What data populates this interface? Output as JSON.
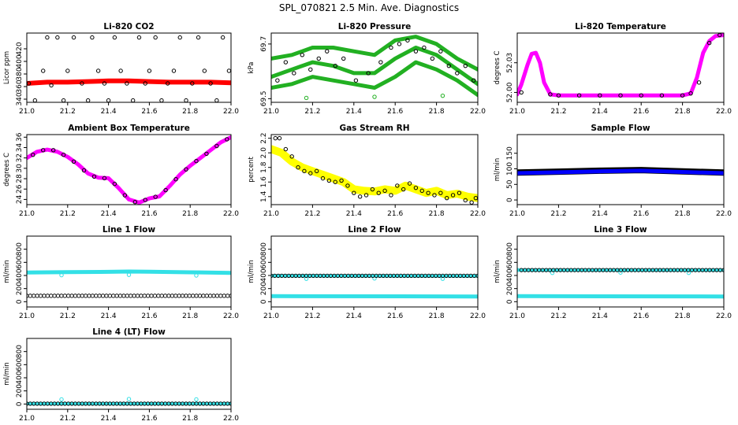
{
  "main_title": "SPL_070821  2.5 Min. Ave. Diagnostics",
  "chart_data": [
    {
      "id": "co2",
      "type": "scatter",
      "title": "Li-820 CO2",
      "ylabel": "Licor ppm",
      "xlim": [
        21.0,
        22.0
      ],
      "ylim": [
        335,
        445
      ],
      "xticks": [
        21.0,
        21.2,
        21.4,
        21.6,
        21.8,
        22.0
      ],
      "yticks": [
        340,
        360,
        380,
        400,
        420
      ],
      "series": [
        {
          "kind": "band",
          "color": "#ff0000",
          "x": [
            21.0,
            21.1,
            21.2,
            21.3,
            21.4,
            21.5,
            21.6,
            21.7,
            21.8,
            21.9,
            22.0
          ],
          "y": [
            365,
            367,
            367,
            368,
            369,
            369,
            368,
            367,
            367,
            367,
            366
          ],
          "w": 6
        },
        {
          "kind": "points",
          "color": "#000000",
          "x": [
            21.01,
            21.04,
            21.08,
            21.1,
            21.12,
            21.15,
            21.18,
            21.2,
            21.23,
            21.27,
            21.3,
            21.32,
            21.35,
            21.38,
            21.4,
            21.43,
            21.46,
            21.49,
            21.52,
            21.55,
            21.58,
            21.6,
            21.63,
            21.66,
            21.69,
            21.72,
            21.75,
            21.78,
            21.81,
            21.84,
            21.87,
            21.9,
            21.93,
            21.96,
            21.99
          ],
          "y": [
            365,
            338,
            385,
            438,
            362,
            438,
            338,
            385,
            438,
            365,
            338,
            438,
            385,
            365,
            338,
            438,
            385,
            365,
            338,
            438,
            365,
            385,
            438,
            338,
            365,
            385,
            438,
            338,
            365,
            438,
            385,
            365,
            338,
            438,
            385
          ]
        }
      ]
    },
    {
      "id": "pressure",
      "type": "scatter",
      "title": "Li-820 Pressure",
      "ylabel": "kPa",
      "xlim": [
        21.0,
        22.0
      ],
      "ylim": [
        69.54,
        69.73
      ],
      "xticks": [
        21.0,
        21.2,
        21.4,
        21.6,
        21.8,
        22.0
      ],
      "yticks": [
        69.55,
        69.7
      ],
      "series": [
        {
          "kind": "band",
          "color": "#22b022",
          "x": [
            21.0,
            21.1,
            21.2,
            21.3,
            21.4,
            21.5,
            21.6,
            21.7,
            21.8,
            21.9,
            22.0
          ],
          "y": [
            69.66,
            69.67,
            69.69,
            69.69,
            69.68,
            69.67,
            69.71,
            69.72,
            69.7,
            69.66,
            69.63
          ],
          "w": 5
        },
        {
          "kind": "band",
          "color": "#22b022",
          "x": [
            21.0,
            21.1,
            21.2,
            21.3,
            21.4,
            21.5,
            21.6,
            21.7,
            21.8,
            21.9,
            22.0
          ],
          "y": [
            69.61,
            69.63,
            69.65,
            69.64,
            69.62,
            69.62,
            69.66,
            69.69,
            69.67,
            69.63,
            69.59
          ],
          "w": 5
        },
        {
          "kind": "band",
          "color": "#22b022",
          "x": [
            21.0,
            21.1,
            21.2,
            21.3,
            21.4,
            21.5,
            21.6,
            21.7,
            21.8,
            21.9,
            22.0
          ],
          "y": [
            69.58,
            69.59,
            69.61,
            69.6,
            69.59,
            69.58,
            69.61,
            69.65,
            69.63,
            69.6,
            69.56
          ],
          "w": 5
        },
        {
          "kind": "points",
          "color": "#22b022",
          "x": [
            21.17,
            21.5,
            21.83
          ],
          "y": [
            69.552,
            69.555,
            69.558
          ]
        },
        {
          "kind": "points",
          "color": "#000000",
          "x": [
            21.03,
            21.07,
            21.11,
            21.15,
            21.19,
            21.23,
            21.27,
            21.31,
            21.35,
            21.41,
            21.47,
            21.53,
            21.58,
            21.62,
            21.66,
            21.7,
            21.74,
            21.78,
            21.82,
            21.86,
            21.9,
            21.94,
            21.98
          ],
          "y": [
            69.6,
            69.65,
            69.62,
            69.67,
            69.63,
            69.66,
            69.68,
            69.64,
            69.66,
            69.6,
            69.62,
            69.65,
            69.69,
            69.7,
            69.71,
            69.68,
            69.69,
            69.66,
            69.68,
            69.64,
            69.62,
            69.64,
            69.6
          ]
        }
      ]
    },
    {
      "id": "licortemp",
      "type": "scatter",
      "title": "Li-820 Temperature",
      "ylabel": "degrees C",
      "xlim": [
        21.0,
        22.0
      ],
      "ylim": [
        51.99,
        52.06
      ],
      "xticks": [
        21.0,
        21.2,
        21.4,
        21.6,
        21.8,
        22.0
      ],
      "yticks": [
        52.0,
        52.03
      ],
      "series": [
        {
          "kind": "band",
          "color": "#ff00ff",
          "x": [
            21.0,
            21.02,
            21.05,
            21.07,
            21.09,
            21.11,
            21.13,
            21.16,
            21.2,
            21.4,
            21.6,
            21.8,
            21.84,
            21.87,
            21.9,
            21.93,
            21.96,
            22.0
          ],
          "y": [
            51.998,
            52.008,
            52.028,
            52.039,
            52.04,
            52.03,
            52.01,
            51.998,
            51.997,
            51.997,
            51.997,
            51.997,
            51.999,
            52.015,
            52.04,
            52.052,
            52.057,
            52.058
          ],
          "w": 5
        },
        {
          "kind": "points",
          "color": "#000000",
          "x": [
            21.02,
            21.16,
            21.2,
            21.3,
            21.4,
            21.5,
            21.6,
            21.7,
            21.8,
            21.84,
            21.88,
            21.93,
            21.98
          ],
          "y": [
            52.0,
            51.998,
            51.997,
            51.997,
            51.997,
            51.997,
            51.997,
            51.997,
            51.997,
            51.999,
            52.01,
            52.05,
            52.058
          ]
        }
      ]
    },
    {
      "id": "boxtemp",
      "type": "scatter",
      "title": "Ambient Box Temperature",
      "ylabel": "degrees C",
      "xlim": [
        21.0,
        22.0
      ],
      "ylim": [
        23,
        36.5
      ],
      "xticks": [
        21.0,
        21.2,
        21.4,
        21.6,
        21.8,
        22.0
      ],
      "yticks": [
        24,
        26,
        28,
        30,
        32,
        34,
        36
      ],
      "series": [
        {
          "kind": "band",
          "color": "#ff00ff",
          "x": [
            21.0,
            21.05,
            21.1,
            21.15,
            21.2,
            21.25,
            21.3,
            21.35,
            21.4,
            21.45,
            21.5,
            21.55,
            21.6,
            21.65,
            21.7,
            21.75,
            21.8,
            21.85,
            21.9,
            21.95,
            22.0
          ],
          "y": [
            32,
            33.2,
            33.6,
            33.2,
            32.2,
            30.8,
            29,
            28.2,
            28.1,
            26.2,
            24,
            23.4,
            24.2,
            24.6,
            26.6,
            28.8,
            30.5,
            32,
            33.5,
            35,
            36
          ],
          "w": 5
        },
        {
          "kind": "points",
          "color": "#000000",
          "x": [
            21.03,
            21.08,
            21.13,
            21.18,
            21.23,
            21.28,
            21.33,
            21.38,
            21.43,
            21.48,
            21.53,
            21.58,
            21.63,
            21.68,
            21.73,
            21.78,
            21.83,
            21.88,
            21.93,
            21.98
          ],
          "y": [
            32.6,
            33.5,
            33.5,
            32.6,
            31.3,
            29.6,
            28.4,
            28.1,
            27,
            24.8,
            23.5,
            23.9,
            24.5,
            25.8,
            27.9,
            29.8,
            31.4,
            32.8,
            34.3,
            35.6
          ]
        }
      ]
    },
    {
      "id": "rh",
      "type": "scatter",
      "title": "Gas Stream RH",
      "ylabel": "percent",
      "xlim": [
        21.0,
        22.0
      ],
      "ylim": [
        1.29,
        2.25
      ],
      "xticks": [
        21.0,
        21.2,
        21.4,
        21.6,
        21.8,
        22.0
      ],
      "yticks": [
        1.4,
        1.6,
        1.8,
        2.0,
        2.2
      ],
      "series": [
        {
          "kind": "band",
          "color": "#ffff00",
          "x": [
            21.0,
            21.05,
            21.1,
            21.15,
            21.2,
            21.25,
            21.3,
            21.35,
            21.4,
            21.45,
            21.5,
            21.55,
            21.6,
            21.65,
            21.7,
            21.75,
            21.8,
            21.85,
            21.9,
            21.95,
            22.0
          ],
          "y": [
            2.05,
            2.0,
            1.88,
            1.8,
            1.75,
            1.7,
            1.65,
            1.6,
            1.5,
            1.48,
            1.47,
            1.5,
            1.48,
            1.55,
            1.5,
            1.45,
            1.48,
            1.42,
            1.44,
            1.4,
            1.38
          ],
          "w": 10
        },
        {
          "kind": "points",
          "color": "#000000",
          "x": [
            21.02,
            21.04,
            21.07,
            21.1,
            21.13,
            21.16,
            21.19,
            21.22,
            21.25,
            21.28,
            21.31,
            21.34,
            21.37,
            21.4,
            21.43,
            21.46,
            21.49,
            21.52,
            21.55,
            21.58,
            21.61,
            21.64,
            21.67,
            21.7,
            21.73,
            21.76,
            21.79,
            21.82,
            21.85,
            21.88,
            21.91,
            21.94,
            21.97,
            21.99
          ],
          "y": [
            2.2,
            2.2,
            2.05,
            1.95,
            1.8,
            1.75,
            1.72,
            1.75,
            1.65,
            1.62,
            1.6,
            1.62,
            1.55,
            1.45,
            1.4,
            1.42,
            1.5,
            1.45,
            1.48,
            1.42,
            1.55,
            1.5,
            1.58,
            1.52,
            1.48,
            1.45,
            1.42,
            1.45,
            1.38,
            1.42,
            1.45,
            1.35,
            1.32,
            1.38
          ]
        }
      ]
    },
    {
      "id": "sampleflow",
      "type": "scatter",
      "title": "Sample Flow",
      "ylabel": "ml/min",
      "xlim": [
        21.0,
        22.0
      ],
      "ylim": [
        -15,
        210
      ],
      "xticks": [
        21.0,
        21.2,
        21.4,
        21.6,
        21.8,
        22.0
      ],
      "yticks": [
        0,
        50,
        100,
        150
      ],
      "series": [
        {
          "kind": "band",
          "color": "#000000",
          "x": [
            21.0,
            21.2,
            21.4,
            21.6,
            21.8,
            22.0
          ],
          "y": [
            88,
            91,
            94,
            96,
            92,
            88
          ],
          "w": 8
        },
        {
          "kind": "band",
          "color": "#0000ff",
          "x": [
            21.0,
            21.2,
            21.4,
            21.6,
            21.8,
            22.0
          ],
          "y": [
            86,
            89,
            92,
            94,
            90,
            86
          ],
          "w": 5
        }
      ]
    },
    {
      "id": "line1",
      "type": "scatter",
      "title": "Line 1 Flow",
      "ylabel": "ml/min",
      "xlim": [
        21.0,
        22.0
      ],
      "ylim": [
        -80,
        1000
      ],
      "xticks": [
        21.0,
        21.2,
        21.4,
        21.6,
        21.8,
        22.0
      ],
      "yticks": [
        0,
        200,
        400,
        600,
        800
      ],
      "series": [
        {
          "kind": "band",
          "color": "#33e0e6",
          "x": [
            21.0,
            21.2,
            21.4,
            21.5,
            21.6,
            21.8,
            22.0
          ],
          "y": [
            445,
            450,
            455,
            460,
            458,
            448,
            440
          ],
          "w": 5
        },
        {
          "kind": "points",
          "color": "#33e0e6",
          "x": [
            21.17,
            21.5,
            21.83
          ],
          "y": [
            405,
            410,
            400
          ]
        },
        {
          "kind": "dense",
          "color": "#000000",
          "x0": 21.0,
          "x1": 22.0,
          "y": 90,
          "n": 60
        }
      ]
    },
    {
      "id": "line2",
      "type": "scatter",
      "title": "Line 2 Flow",
      "ylabel": "ml/min",
      "xlim": [
        21.0,
        22.0
      ],
      "ylim": [
        -80,
        1000
      ],
      "xticks": [
        21.0,
        21.2,
        21.4,
        21.6,
        21.8,
        22.0
      ],
      "yticks": [
        0,
        200,
        400,
        600,
        800
      ],
      "series": [
        {
          "kind": "band",
          "color": "#33e0e6",
          "x": [
            21.0,
            22.0
          ],
          "y": [
            85,
            80
          ],
          "w": 5
        },
        {
          "kind": "band",
          "color": "#33e0e6",
          "x": [
            21.0,
            22.0
          ],
          "y": [
            395,
            390
          ],
          "w": 4
        },
        {
          "kind": "points",
          "color": "#33e0e6",
          "x": [
            21.17,
            21.5,
            21.83
          ],
          "y": [
            350,
            355,
            350
          ]
        },
        {
          "kind": "dense",
          "color": "#000000",
          "x0": 21.0,
          "x1": 22.0,
          "y": 395,
          "n": 60
        }
      ]
    },
    {
      "id": "line3",
      "type": "scatter",
      "title": "Line 3 Flow",
      "ylabel": "ml/min",
      "xlim": [
        21.0,
        22.0
      ],
      "ylim": [
        -80,
        1000
      ],
      "xticks": [
        21.0,
        21.2,
        21.4,
        21.6,
        21.8,
        22.0
      ],
      "yticks": [
        0,
        200,
        400,
        600,
        800
      ],
      "series": [
        {
          "kind": "band",
          "color": "#33e0e6",
          "x": [
            21.0,
            22.0
          ],
          "y": [
            85,
            80
          ],
          "w": 5
        },
        {
          "kind": "band",
          "color": "#33e0e6",
          "x": [
            21.0,
            22.0
          ],
          "y": [
            480,
            480
          ],
          "w": 4
        },
        {
          "kind": "points",
          "color": "#33e0e6",
          "x": [
            21.0,
            21.17,
            21.5,
            21.83
          ],
          "y": [
            485,
            440,
            445,
            440
          ]
        },
        {
          "kind": "dense",
          "color": "#000000",
          "x0": 21.02,
          "x1": 22.0,
          "y": 482,
          "n": 58
        }
      ]
    },
    {
      "id": "line4",
      "type": "scatter",
      "title": "Line 4 (LT) Flow",
      "ylabel": "ml/min",
      "xlim": [
        21.0,
        22.0
      ],
      "ylim": [
        -80,
        1000
      ],
      "xticks": [
        21.0,
        21.2,
        21.4,
        21.6,
        21.8,
        22.0
      ],
      "yticks": [
        0,
        200,
        400,
        600,
        800
      ],
      "series": [
        {
          "kind": "band",
          "color": "#33e0e6",
          "x": [
            21.0,
            22.0
          ],
          "y": [
            5,
            5
          ],
          "w": 4
        },
        {
          "kind": "points",
          "color": "#33e0e6",
          "x": [
            21.17,
            21.5,
            21.83
          ],
          "y": [
            70,
            75,
            70
          ]
        },
        {
          "kind": "dense",
          "color": "#000000",
          "x0": 21.0,
          "x1": 22.0,
          "y": 5,
          "n": 60
        }
      ]
    }
  ]
}
